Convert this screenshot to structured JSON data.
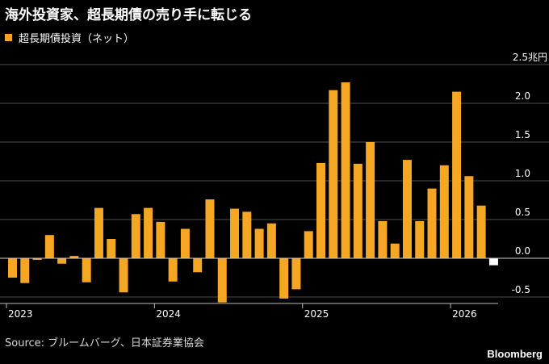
{
  "header": {
    "title": "海外投資家、超長期債の売り手に転じる"
  },
  "legend": {
    "label": "超長期債投資（ネット）"
  },
  "footer": {
    "source": "Source: ブルームバーグ、日本証券業協会",
    "logo": "Bloomberg"
  },
  "colors": {
    "background": "#000000",
    "bar_positive": "#f5a623",
    "bar_latest_negative": "#ffffff",
    "grid": "#4d4d4d"
  },
  "chart_data": {
    "type": "bar",
    "title": "海外投資家、超長期債の売り手に転じる",
    "ylabel": "",
    "y_unit": "兆円",
    "ylim": [
      -0.6,
      2.5
    ],
    "y_ticks": [
      {
        "value": 2.5,
        "label": "2.5兆円"
      },
      {
        "value": 2.0,
        "label": "2.0"
      },
      {
        "value": 1.5,
        "label": "1.5"
      },
      {
        "value": 1.0,
        "label": "1.0"
      },
      {
        "value": 0.5,
        "label": "0.5"
      },
      {
        "value": 0.0,
        "label": "0.0"
      },
      {
        "value": -0.5,
        "label": "-0.5"
      }
    ],
    "grid": true,
    "legend_placement": "top-left",
    "x_ticks": [
      {
        "index": 0,
        "label": "2023"
      },
      {
        "index": 12,
        "label": "2024"
      },
      {
        "index": 24,
        "label": "2025"
      },
      {
        "index": 36,
        "label": "2026"
      }
    ],
    "series": [
      {
        "name": "超長期債投資（ネット）",
        "values": [
          -0.25,
          -0.32,
          -0.02,
          0.3,
          -0.07,
          0.03,
          -0.31,
          0.65,
          0.25,
          -0.44,
          0.57,
          0.65,
          0.47,
          -0.3,
          0.38,
          -0.18,
          0.76,
          -0.57,
          0.64,
          0.6,
          0.38,
          0.45,
          -0.52,
          -0.4,
          0.35,
          1.23,
          2.17,
          2.27,
          1.22,
          1.5,
          0.48,
          0.19,
          1.27,
          0.48,
          0.9,
          1.2,
          2.15,
          1.06,
          0.68,
          -0.09
        ]
      }
    ],
    "highlight_last": true
  }
}
